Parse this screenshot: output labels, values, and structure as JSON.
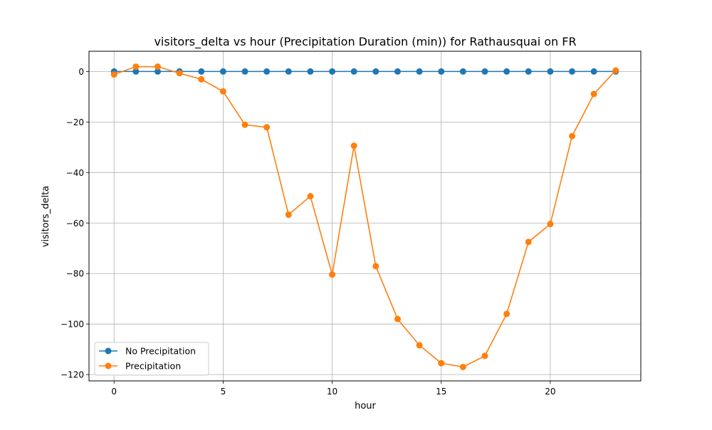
{
  "chart_data": {
    "type": "line",
    "title": "visitors_delta vs hour (Precipitation Duration (min)) for Rathausquai on FR",
    "xlabel": "hour",
    "ylabel": "visitors_delta",
    "xlim": [
      -1.15,
      24.15
    ],
    "ylim": [
      -122.5,
      8.0
    ],
    "xticks": [
      0,
      5,
      10,
      15,
      20
    ],
    "yticks": [
      0,
      -20,
      -40,
      -60,
      -80,
      -100,
      -120
    ],
    "grid": true,
    "legend_position": "lower-left",
    "x": [
      0,
      1,
      2,
      3,
      4,
      5,
      6,
      7,
      8,
      9,
      10,
      11,
      12,
      13,
      14,
      15,
      16,
      17,
      18,
      19,
      20,
      21,
      22,
      23
    ],
    "series": [
      {
        "name": "No Precipitation",
        "color": "#1f77b4",
        "marker": "circle",
        "values": [
          0,
          0,
          0,
          0,
          0,
          0,
          0,
          0,
          0,
          0,
          0,
          0,
          0,
          0,
          0,
          0,
          0,
          0,
          0,
          0,
          0,
          0,
          0,
          0
        ]
      },
      {
        "name": "Precipitation",
        "color": "#ff7f0e",
        "marker": "circle",
        "values": [
          -1.2,
          1.9,
          1.9,
          -0.7,
          -3.1,
          -7.9,
          -21.1,
          -22.1,
          -56.7,
          -49.4,
          -80.4,
          -29.4,
          -77.1,
          -98.0,
          -108.4,
          -115.5,
          -117.0,
          -112.6,
          -96.0,
          -67.5,
          -60.4,
          -25.6,
          -8.9,
          0.4
        ]
      }
    ]
  }
}
